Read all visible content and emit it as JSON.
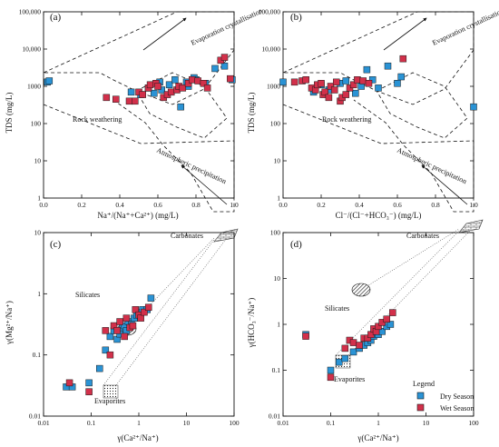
{
  "colors": {
    "dry": "#2a93d5",
    "wet": "#d2304a",
    "edge": "#1a1a1a"
  },
  "legend": {
    "title": "Legend",
    "dry": "Dry Season",
    "wet": "Wet Season"
  },
  "chart_data": [
    {
      "panel": "(a)",
      "type": "scatter",
      "xlabel": "Na⁺/(Na⁺+Ca²⁺)  (mg/L)",
      "ylabel": "TDS  (mg/L)",
      "xlim": [
        0,
        1
      ],
      "ylim": [
        1,
        100000
      ],
      "yscale": "log",
      "xticks": [
        "0.0",
        "0.2",
        "0.4",
        "0.6",
        "0.8",
        "1.0"
      ],
      "yticks": [
        "1",
        "10",
        "100",
        "1000",
        "10,000",
        "100,000"
      ],
      "annotations": [
        "Evaporation crystallisation",
        "Rock weathering",
        "Atmospheric precipitation"
      ],
      "series": [
        {
          "name": "Dry Season",
          "points": [
            [
              0.02,
              1300
            ],
            [
              0.03,
              1400
            ],
            [
              0.46,
              700
            ],
            [
              0.51,
              600
            ],
            [
              0.55,
              900
            ],
            [
              0.58,
              650
            ],
            [
              0.61,
              1300
            ],
            [
              0.62,
              800
            ],
            [
              0.66,
              1100
            ],
            [
              0.69,
              1500
            ],
            [
              0.72,
              280
            ],
            [
              0.75,
              1300
            ],
            [
              0.76,
              1000
            ],
            [
              0.79,
              1700
            ],
            [
              0.8,
              1500
            ],
            [
              0.85,
              1200
            ],
            [
              0.9,
              3000
            ],
            [
              0.95,
              3500
            ],
            [
              0.99,
              1500
            ]
          ]
        },
        {
          "name": "Wet Season",
          "points": [
            [
              0.33,
              500
            ],
            [
              0.38,
              450
            ],
            [
              0.45,
              400
            ],
            [
              0.48,
              400
            ],
            [
              0.5,
              700
            ],
            [
              0.52,
              600
            ],
            [
              0.55,
              900
            ],
            [
              0.56,
              1100
            ],
            [
              0.59,
              1200
            ],
            [
              0.6,
              1000
            ],
            [
              0.63,
              500
            ],
            [
              0.65,
              600
            ],
            [
              0.67,
              700
            ],
            [
              0.7,
              800
            ],
            [
              0.71,
              1000
            ],
            [
              0.73,
              900
            ],
            [
              0.76,
              1200
            ],
            [
              0.78,
              1500
            ],
            [
              0.81,
              1400
            ],
            [
              0.84,
              1200
            ],
            [
              0.86,
              900
            ],
            [
              0.93,
              5000
            ],
            [
              0.95,
              6000
            ],
            [
              0.98,
              1600
            ]
          ]
        }
      ]
    },
    {
      "panel": "(b)",
      "type": "scatter",
      "xlabel": "Cl⁻/(Cl⁻+HCO₃⁻)  (mg/L)",
      "ylabel": "TDS  (mg/L)",
      "xlim": [
        0,
        1
      ],
      "ylim": [
        1,
        100000
      ],
      "yscale": "log",
      "xticks": [
        "0.0",
        "0.2",
        "0.4",
        "0.6",
        "0.8",
        "1.0"
      ],
      "yticks": [
        "1",
        "10",
        "100",
        "1000",
        "10,000",
        "100,000"
      ],
      "annotations": [
        "Evaporation crystallisation",
        "Rock weathering",
        "Atmospheric precipitation"
      ],
      "series": [
        {
          "name": "Dry Season",
          "points": [
            [
              0.0,
              1300
            ],
            [
              0.16,
              700
            ],
            [
              0.2,
              1100
            ],
            [
              0.24,
              800
            ],
            [
              0.3,
              1200
            ],
            [
              0.33,
              1400
            ],
            [
              0.38,
              650
            ],
            [
              0.41,
              1000
            ],
            [
              0.44,
              2800
            ],
            [
              0.47,
              1500
            ],
            [
              0.5,
              900
            ],
            [
              0.55,
              3500
            ],
            [
              0.6,
              1200
            ],
            [
              0.62,
              1800
            ],
            [
              1.0,
              280
            ]
          ]
        },
        {
          "name": "Wet Season",
          "points": [
            [
              0.06,
              1300
            ],
            [
              0.1,
              1400
            ],
            [
              0.12,
              1500
            ],
            [
              0.15,
              900
            ],
            [
              0.17,
              800
            ],
            [
              0.18,
              1100
            ],
            [
              0.2,
              1200
            ],
            [
              0.21,
              600
            ],
            [
              0.22,
              700
            ],
            [
              0.24,
              500
            ],
            [
              0.25,
              1000
            ],
            [
              0.27,
              800
            ],
            [
              0.28,
              1300
            ],
            [
              0.3,
              400
            ],
            [
              0.31,
              500
            ],
            [
              0.33,
              600
            ],
            [
              0.35,
              900
            ],
            [
              0.37,
              1100
            ],
            [
              0.39,
              1500
            ],
            [
              0.42,
              1400
            ],
            [
              0.45,
              1200
            ],
            [
              0.63,
              5500
            ]
          ]
        }
      ]
    },
    {
      "panel": "(c)",
      "type": "scatter",
      "xlabel": "γ(Ca²⁺/Na⁺)",
      "ylabel": "γ(Mg²⁺/Na⁺)",
      "xlim": [
        0.01,
        100
      ],
      "ylim": [
        0.01,
        10
      ],
      "xscale": "log",
      "yscale": "log",
      "xticks": [
        "0.01",
        "0.1",
        "1",
        "10",
        "100"
      ],
      "yticks": [
        "0.01",
        "0.1",
        "1",
        "10"
      ],
      "annotations": [
        "Carbonates",
        "Silicates",
        "Evaporites"
      ],
      "series": [
        {
          "name": "Dry Season",
          "points": [
            [
              0.03,
              0.03
            ],
            [
              0.04,
              0.03
            ],
            [
              0.09,
              0.035
            ],
            [
              0.15,
              0.06
            ],
            [
              0.2,
              0.12
            ],
            [
              0.25,
              0.2
            ],
            [
              0.3,
              0.25
            ],
            [
              0.35,
              0.18
            ],
            [
              0.4,
              0.22
            ],
            [
              0.45,
              0.28
            ],
            [
              0.5,
              0.3
            ],
            [
              0.55,
              0.25
            ],
            [
              0.6,
              0.35
            ],
            [
              0.7,
              0.32
            ],
            [
              0.8,
              0.4
            ],
            [
              0.9,
              0.45
            ],
            [
              1.0,
              0.5
            ],
            [
              1.2,
              0.55
            ],
            [
              1.5,
              0.55
            ],
            [
              1.8,
              0.85
            ]
          ]
        },
        {
          "name": "Wet Season",
          "points": [
            [
              0.035,
              0.035
            ],
            [
              0.09,
              0.025
            ],
            [
              0.2,
              0.25
            ],
            [
              0.25,
              0.1
            ],
            [
              0.3,
              0.3
            ],
            [
              0.35,
              0.25
            ],
            [
              0.4,
              0.35
            ],
            [
              0.5,
              0.2
            ],
            [
              0.55,
              0.4
            ],
            [
              0.65,
              0.28
            ],
            [
              0.75,
              0.3
            ],
            [
              0.85,
              0.55
            ],
            [
              1.0,
              0.45
            ],
            [
              1.1,
              0.4
            ],
            [
              1.3,
              0.5
            ],
            [
              1.6,
              0.6
            ]
          ]
        }
      ]
    },
    {
      "panel": "(d)",
      "type": "scatter",
      "xlabel": "γ(Ca²⁺/Na⁺)",
      "ylabel": "γ(HCO₃⁻/Na⁺)",
      "xlim": [
        0.01,
        100
      ],
      "ylim": [
        0.01,
        100
      ],
      "xscale": "log",
      "yscale": "log",
      "xticks": [
        "0.01",
        "0.1",
        "1",
        "10",
        "100"
      ],
      "yticks": [
        "0.01",
        "0.1",
        "1",
        "10",
        "100"
      ],
      "annotations": [
        "Carbonates",
        "Silicates",
        "Evaporites"
      ],
      "series": [
        {
          "name": "Dry Season",
          "points": [
            [
              0.03,
              0.6
            ],
            [
              0.1,
              0.1
            ],
            [
              0.15,
              0.15
            ],
            [
              0.2,
              0.18
            ],
            [
              0.3,
              0.25
            ],
            [
              0.4,
              0.3
            ],
            [
              0.5,
              0.35
            ],
            [
              0.6,
              0.4
            ],
            [
              0.7,
              0.45
            ],
            [
              0.8,
              0.55
            ],
            [
              1.0,
              0.6
            ],
            [
              1.2,
              0.7
            ],
            [
              1.5,
              0.9
            ],
            [
              1.8,
              1.0
            ]
          ]
        },
        {
          "name": "Wet Season",
          "points": [
            [
              0.03,
              0.55
            ],
            [
              0.1,
              0.07
            ],
            [
              0.2,
              0.3
            ],
            [
              0.25,
              0.45
            ],
            [
              0.3,
              0.4
            ],
            [
              0.4,
              0.35
            ],
            [
              0.5,
              0.5
            ],
            [
              0.6,
              0.5
            ],
            [
              0.7,
              0.6
            ],
            [
              0.8,
              0.8
            ],
            [
              0.9,
              0.7
            ],
            [
              1.0,
              0.9
            ],
            [
              1.2,
              1.1
            ],
            [
              1.5,
              1.3
            ],
            [
              2.0,
              1.8
            ]
          ]
        }
      ]
    }
  ]
}
